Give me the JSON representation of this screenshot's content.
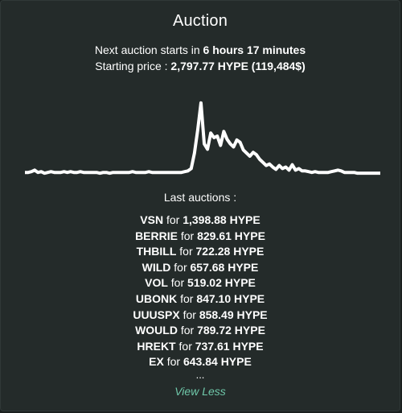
{
  "auction": {
    "title": "Auction",
    "next_prefix": "Next auction starts in ",
    "next_time": "6 hours 17 minutes",
    "price_prefix": "Starting price : ",
    "price_value": "2,797.77 HYPE (119,484$)",
    "last_auctions_title": "Last auctions :",
    "for_word": " for ",
    "items": [
      {
        "ticker": "VSN",
        "amount": "1,398.88 HYPE"
      },
      {
        "ticker": "BERRIE",
        "amount": "829.61 HYPE"
      },
      {
        "ticker": "THBILL",
        "amount": "722.28 HYPE"
      },
      {
        "ticker": "WILD",
        "amount": "657.68 HYPE"
      },
      {
        "ticker": "VOL",
        "amount": "519.02 HYPE"
      },
      {
        "ticker": "UBONK",
        "amount": "847.10 HYPE"
      },
      {
        "ticker": "UUUSPX",
        "amount": "858.49 HYPE"
      },
      {
        "ticker": "WOULD",
        "amount": "789.72 HYPE"
      },
      {
        "ticker": "HREKT",
        "amount": "737.61 HYPE"
      },
      {
        "ticker": "EX",
        "amount": "643.84 HYPE"
      }
    ],
    "ellipsis": "...",
    "view_less": "View Less"
  },
  "colors": {
    "background": "#1a1f1e",
    "card": "#242b2a",
    "text": "#ffffff",
    "accent": "#6fc7a9",
    "chart_line": "#ffffff"
  },
  "chart_data": {
    "type": "line",
    "title": "",
    "xlabel": "",
    "ylabel": "",
    "grid": false,
    "legend": "none",
    "ylim": [
      0,
      100
    ],
    "series": [
      {
        "values": [
          5,
          5,
          6,
          8,
          5,
          6,
          4,
          5,
          6,
          5,
          5,
          5,
          6,
          5,
          6,
          5,
          5,
          6,
          5,
          5,
          5,
          5,
          5,
          4,
          5,
          5,
          4,
          5,
          5,
          5,
          5,
          5,
          5,
          6,
          5,
          5,
          5,
          5,
          6,
          5,
          5,
          5,
          5,
          5,
          5,
          5,
          5,
          5,
          5,
          6,
          7,
          10,
          30,
          60,
          95,
          42,
          35,
          56,
          50,
          52,
          40,
          58,
          48,
          42,
          38,
          47,
          44,
          34,
          30,
          26,
          31,
          28,
          22,
          18,
          14,
          16,
          12,
          9,
          14,
          10,
          12,
          8,
          15,
          8,
          10,
          7,
          7,
          6,
          5,
          6,
          5,
          5,
          5,
          5,
          6,
          7,
          8,
          7,
          5,
          5,
          5,
          5,
          4,
          4,
          4,
          4,
          4,
          4,
          4,
          4
        ]
      }
    ]
  }
}
